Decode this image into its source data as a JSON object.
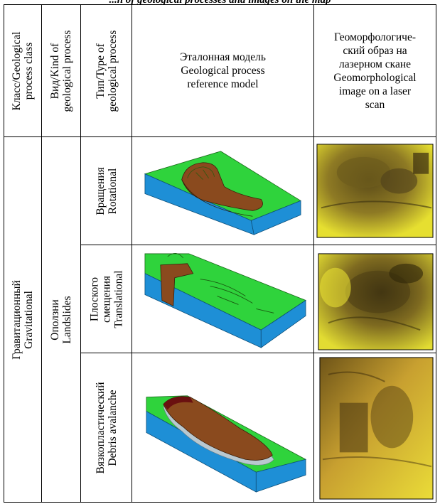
{
  "caption": "...n of geological processes and images on the map",
  "header": {
    "class_col": {
      "line1": "Класс/Geological",
      "line2": "process class"
    },
    "kind_col": {
      "line1": "Вид/Kind of",
      "line2": "geological process"
    },
    "type_col": {
      "line1": "Тип/Type of",
      "line2": "geological process"
    },
    "model_col": {
      "line1": "Эталонная модель",
      "line2": "Geological process",
      "line3": "reference model"
    },
    "image_col": {
      "line1": "Геоморфологиче-",
      "line2": "ский образ на",
      "line3": "лазерном скане",
      "line4": "Geomorphological",
      "line5": "image on a laser",
      "line6": "scan"
    }
  },
  "body": {
    "class": {
      "ru": "Гравитационный",
      "en": "Gravitational"
    },
    "kind": {
      "ru": "Оползни",
      "en": "Landslides"
    },
    "rows": [
      {
        "type_lines": [
          "Вращения",
          "Rotational"
        ],
        "model_icon": "rotational-landslide-block-diagram",
        "scan_icon": "rotational-laser-scan"
      },
      {
        "type_lines": [
          "Плоского",
          "смещения",
          "Translational"
        ],
        "model_icon": "translational-landslide-block-diagram",
        "scan_icon": "translational-laser-scan"
      },
      {
        "type_lines": [
          "Вязкопластический",
          "Debris avalanche"
        ],
        "model_icon": "debris-avalanche-block-diagram",
        "scan_icon": "debris-laser-scan"
      }
    ]
  },
  "colors": {
    "ground": "#2fd33c",
    "water": "#1e8fd6",
    "landslide": "#8a4a1e",
    "scan_yellow": "#e8e030",
    "scan_dark": "#6b5a1c"
  }
}
